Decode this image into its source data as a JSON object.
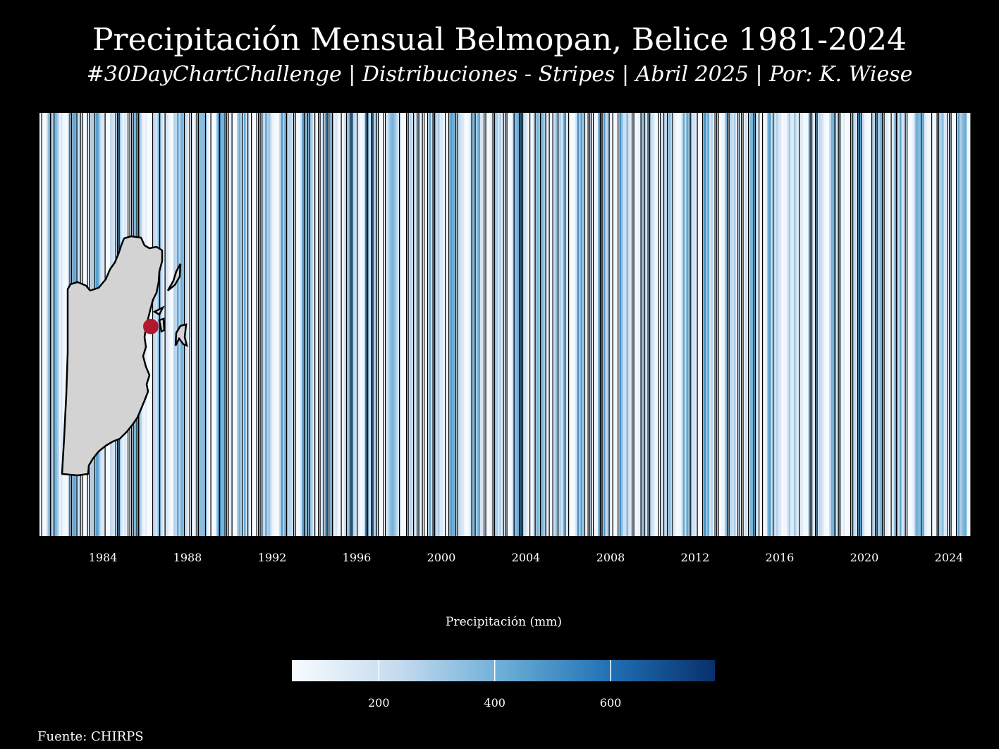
{
  "title": "Precipitación Mensual Belmopan, Belice 1981-2024",
  "subtitle": "#30DayChartChallenge | Distribuciones - Stripes | Abril 2025 | Por: K. Wiese",
  "source": "Fuente: CHIRPS",
  "colors": {
    "background": "#000000",
    "map_fill": "#d3d3d3",
    "location_marker": "#b2182b",
    "scale_low": "#f7fbff",
    "scale_high": "#08306b"
  },
  "chart_data": {
    "type": "heatmap",
    "style": "climate stripes",
    "x_unit": "month",
    "x_start": "1981-01",
    "x_end": "2024-12",
    "xticks": [
      "1984",
      "1988",
      "1992",
      "1996",
      "2000",
      "2004",
      "2008",
      "2012",
      "2016",
      "2020",
      "2024"
    ],
    "yearly_pattern_mm": [
      110,
      60,
      45,
      55,
      180,
      330,
      300,
      290,
      310,
      290,
      200,
      140
    ],
    "legend": {
      "title": "Precipitación (mm)",
      "ticks": [
        "200",
        "400",
        "600"
      ],
      "range": [
        50,
        780
      ]
    },
    "inset_map": {
      "country": "Belice",
      "marker": "Belmopan"
    }
  }
}
